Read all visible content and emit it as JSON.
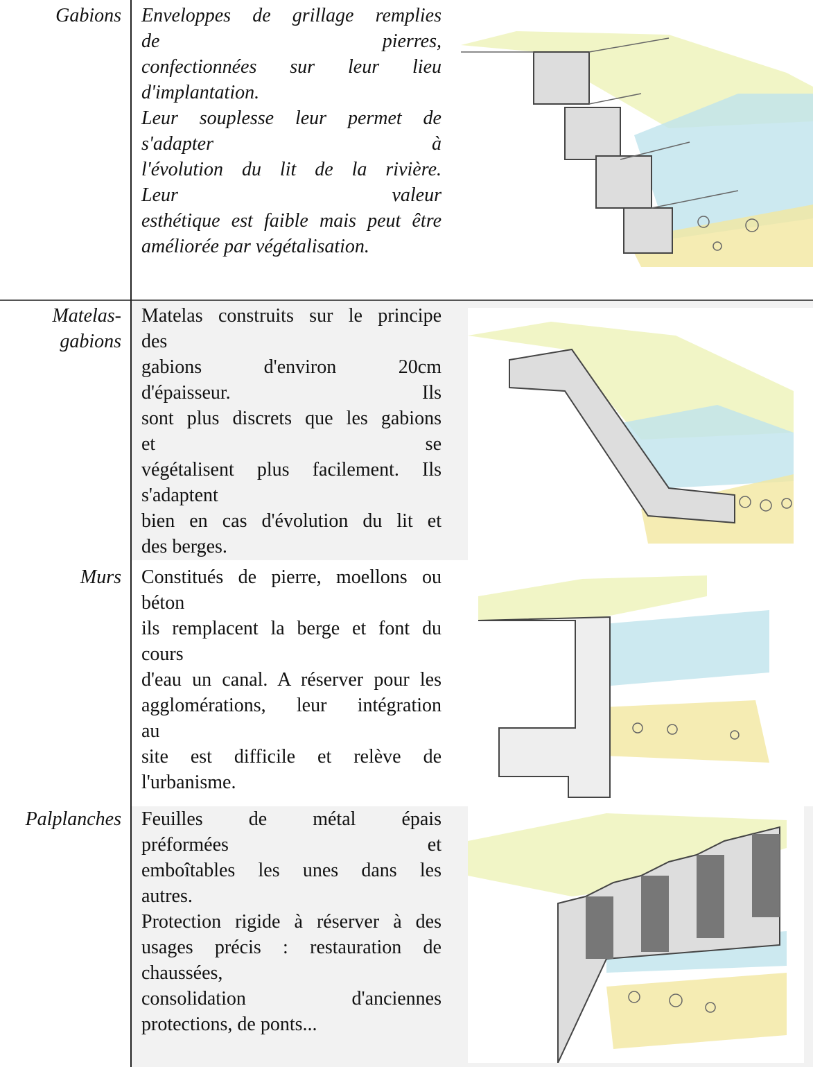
{
  "rows": [
    {
      "label": [
        "Gabions"
      ],
      "lines": [
        "Enveloppes de grillage remplies",
        "de pierres,",
        "confectionnées sur leur lieu",
        "d'implantation.",
        "Leur souplesse leur permet de",
        "s'adapter à",
        "l'évolution du lit de la rivière.",
        "Leur valeur",
        "esthétique est faible mais peut être",
        "améliorée par végétalisation."
      ]
    },
    {
      "label": [
        "Matelas-",
        "gabions"
      ],
      "lines": [
        "Matelas construits sur le principe",
        "des",
        "gabions d'environ 20cm",
        "d'épaisseur. Ils",
        "sont plus discrets que les gabions",
        "et se",
        "végétalisent plus facilement. Ils",
        "s'adaptent",
        "bien en cas d'évolution du lit et",
        "des berges."
      ]
    },
    {
      "label": [
        "Murs"
      ],
      "lines": [
        "Constitués de pierre, moellons ou",
        "béton",
        "ils remplacent la berge et font du",
        "cours",
        "d'eau un canal. A réserver pour les",
        "agglomérations, leur intégration",
        "au",
        "site est difficile et relève de",
        "l'urbanisme."
      ]
    },
    {
      "label": [
        "Palplanches"
      ],
      "lines": [
        "Feuilles de métal épais",
        "préformées et",
        "emboîtables les unes dans les",
        "autres.",
        "Protection rigide à réserver à des",
        "usages précis : restauration de",
        "chaussées,",
        "consolidation d'anciennes",
        "protections, de ponts..."
      ]
    }
  ]
}
